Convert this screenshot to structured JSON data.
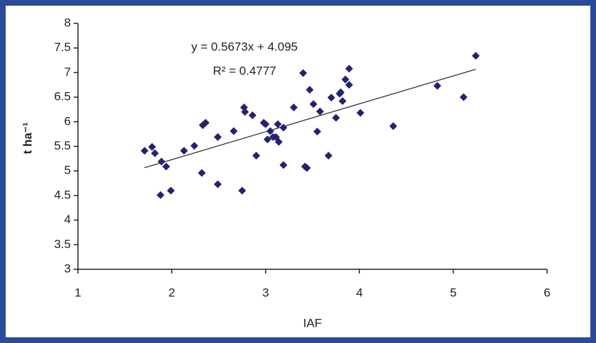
{
  "chart_data": {
    "type": "scatter",
    "equation": "y = 0.5673x + 4.095",
    "r_squared": "R² = 0.4777",
    "trendline": {
      "slope": 0.5673,
      "intercept": 4.095
    },
    "x_label": "IAF",
    "y_label": "t ha⁻¹",
    "color": "#23236e",
    "xlim": [
      1,
      6
    ],
    "xticks": [
      1,
      2,
      3,
      4,
      5,
      6
    ],
    "ylim": [
      3,
      8
    ],
    "yticks": [
      3,
      3.5,
      4,
      4.5,
      5,
      5.5,
      6,
      6.5,
      7,
      7.5,
      8
    ],
    "x": [
      1.71,
      1.79,
      1.82,
      1.89,
      1.94,
      1.88,
      1.99,
      2.13,
      2.24,
      2.33,
      2.36,
      2.32,
      2.49,
      2.49,
      2.66,
      2.77,
      2.78,
      2.86,
      2.75,
      2.9,
      2.98,
      3.0,
      3.02,
      3.05,
      3.08,
      3.11,
      3.13,
      3.14,
      3.19,
      3.19,
      3.3,
      3.4,
      3.42,
      3.44,
      3.47,
      3.51,
      3.55,
      3.58,
      3.67,
      3.7,
      3.75,
      3.79,
      3.8,
      3.82,
      3.85,
      3.89,
      3.89,
      4.01,
      4.36,
      4.83,
      5.11,
      5.24
    ],
    "values": [
      5.41,
      5.49,
      5.36,
      5.19,
      5.09,
      4.51,
      4.6,
      5.41,
      5.51,
      5.93,
      5.98,
      4.96,
      4.73,
      5.69,
      5.81,
      6.29,
      6.2,
      6.13,
      4.6,
      5.31,
      5.98,
      5.95,
      5.64,
      5.81,
      5.69,
      5.69,
      5.95,
      5.59,
      5.88,
      5.12,
      6.29,
      6.99,
      5.09,
      5.06,
      6.65,
      6.36,
      5.8,
      6.21,
      5.31,
      6.49,
      6.08,
      6.57,
      6.6,
      6.42,
      6.86,
      7.08,
      6.75,
      6.18,
      5.91,
      6.73,
      6.5,
      7.34
    ]
  }
}
